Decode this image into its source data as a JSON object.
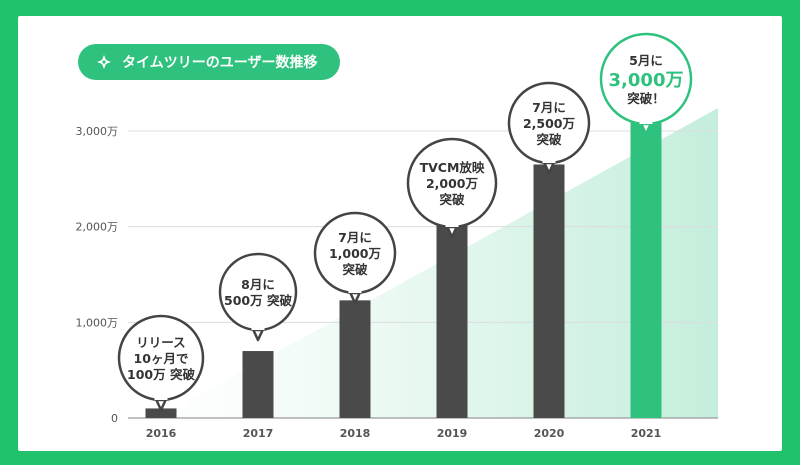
{
  "title": "タイムツリーのユーザー数推移",
  "colors": {
    "background": "#1fc16b",
    "accent": "#2ec27e",
    "bar": "#4a4a4a",
    "bar_highlight": "#2ec27e"
  },
  "chart_data": {
    "type": "bar",
    "title": "タイムツリーのユーザー数推移",
    "categories": [
      "2016",
      "2017",
      "2018",
      "2019",
      "2020",
      "2021"
    ],
    "values": [
      100,
      700,
      1230,
      2040,
      2650,
      3100
    ],
    "y_tick_values": [
      0,
      1000,
      2000,
      3000
    ],
    "y_tick_labels": [
      "0",
      "1,000万",
      "2,000万",
      "3,000万"
    ],
    "ylim": [
      0,
      3600
    ],
    "grid": true,
    "highlight_index": 5,
    "annotations": [
      {
        "lines": [
          "リリース",
          "10ヶ月で",
          "100万 突破"
        ]
      },
      {
        "lines": [
          "8月に",
          "500万 突破"
        ]
      },
      {
        "lines": [
          "7月に",
          "1,000万",
          "突破"
        ]
      },
      {
        "lines": [
          "TVCM放映",
          "2,000万",
          "突破"
        ]
      },
      {
        "lines": [
          "7月に",
          "2,500万",
          "突破"
        ]
      },
      {
        "lines": [
          "5月に",
          "3,000万",
          "突破！"
        ],
        "highlight_line": 1
      }
    ]
  }
}
